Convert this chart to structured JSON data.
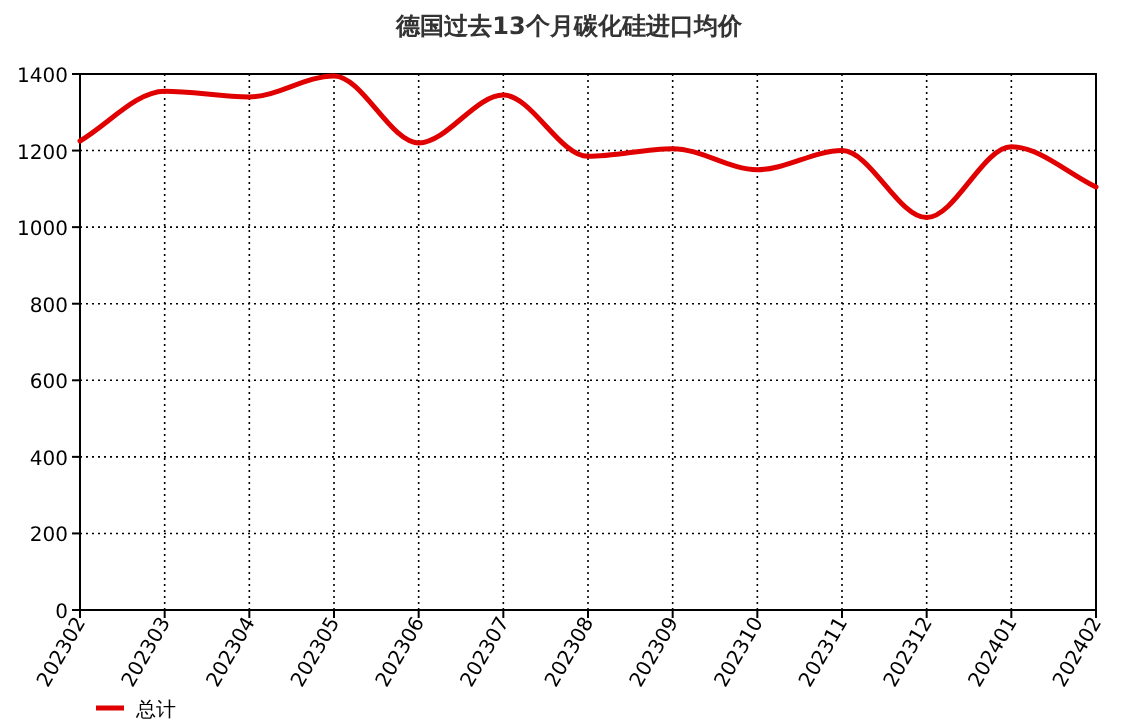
{
  "chart_data": {
    "type": "line",
    "title": "德国过去13个月碳化硅进口均价",
    "categories": [
      "202302",
      "202303",
      "202304",
      "202305",
      "202306",
      "202307",
      "202308",
      "202309",
      "202310",
      "202311",
      "202312",
      "202401",
      "202402"
    ],
    "series": [
      {
        "name": "总计",
        "color": "#e00000",
        "values": [
          1225,
          1355,
          1340,
          1395,
          1220,
          1345,
          1185,
          1205,
          1150,
          1200,
          1025,
          1210,
          1105
        ]
      }
    ],
    "ylim": [
      0,
      1400
    ],
    "yticks": [
      0,
      200,
      400,
      600,
      800,
      1000,
      1200,
      1400
    ],
    "grid": true,
    "legend": "bottom left",
    "marker": "none",
    "line_style": "solid"
  }
}
